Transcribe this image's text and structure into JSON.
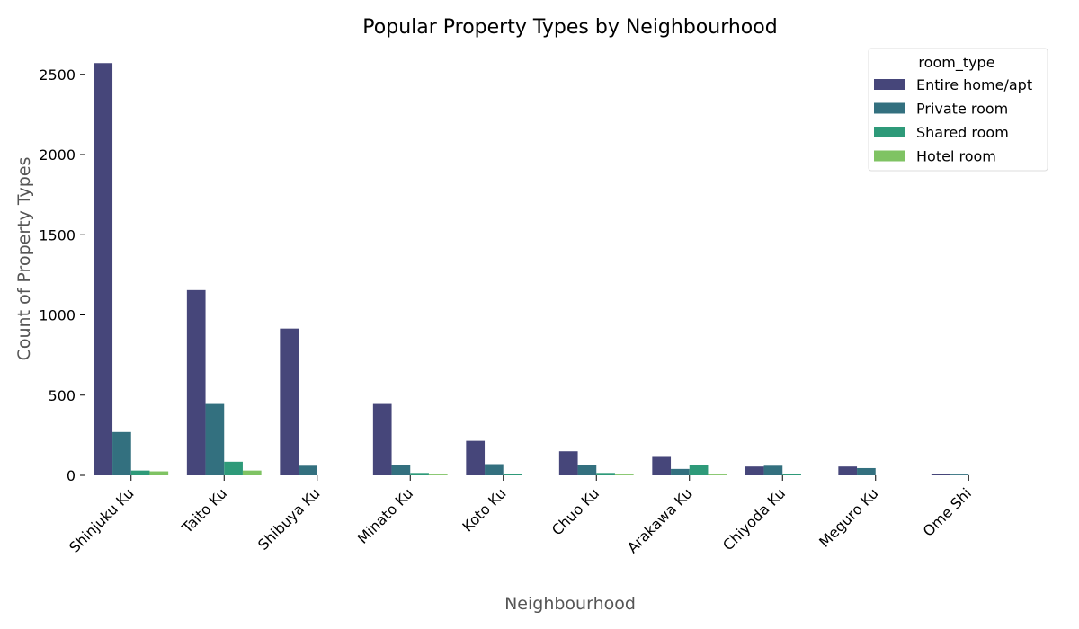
{
  "chart_data": {
    "type": "bar",
    "title": "Popular Property Types by Neighbourhood",
    "xlabel": "Neighbourhood",
    "ylabel": "Count of Property Types",
    "categories": [
      "Shinjuku Ku",
      "Taito Ku",
      "Shibuya Ku",
      "Minato Ku",
      "Koto Ku",
      "Chuo Ku",
      "Arakawa Ku",
      "Chiyoda Ku",
      "Meguro Ku",
      "Ome Shi"
    ],
    "series": [
      {
        "name": "Entire home/apt",
        "color": "#46467a",
        "values": [
          2570,
          1155,
          915,
          445,
          215,
          150,
          115,
          55,
          55,
          10
        ]
      },
      {
        "name": "Private room",
        "color": "#33707f",
        "values": [
          270,
          445,
          60,
          65,
          70,
          65,
          40,
          60,
          45,
          5
        ]
      },
      {
        "name": "Shared room",
        "color": "#2e9a79",
        "values": [
          30,
          85,
          0,
          15,
          10,
          15,
          65,
          10,
          0,
          0
        ]
      },
      {
        "name": "Hotel room",
        "color": "#7fc363",
        "values": [
          25,
          30,
          0,
          5,
          0,
          5,
          5,
          0,
          0,
          0
        ]
      }
    ],
    "yticks": [
      0,
      500,
      1000,
      1500,
      2000,
      2500
    ],
    "ylim": [
      0,
      2600
    ],
    "grid": false,
    "legend": {
      "title": "room_type",
      "placement": "top-right"
    }
  }
}
